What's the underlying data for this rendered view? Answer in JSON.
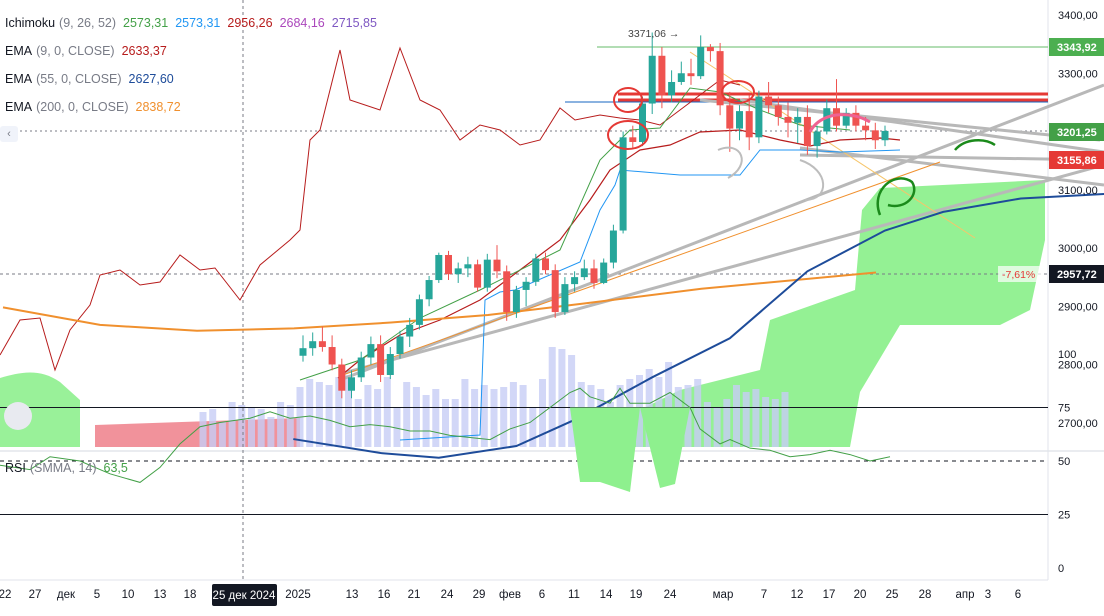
{
  "legend": {
    "ichimoku": {
      "name": "Ichimoku",
      "params": "(9, 26, 52)",
      "values": [
        "2573,31",
        "2573,31",
        "2956,26",
        "2684,16",
        "2715,85"
      ],
      "colors": [
        "#43a047",
        "#2196f3",
        "#b71c1c",
        "#ab47bc",
        "#7e57c2"
      ]
    },
    "ema9": {
      "name": "EMA",
      "params": "(9, 0, CLOSE)",
      "value": "2633,37",
      "color": "#b71c1c"
    },
    "ema55": {
      "name": "EMA",
      "params": "(55, 0, CLOSE)",
      "value": "2627,60",
      "color": "#1e4c9a"
    },
    "ema200": {
      "name": "EMA",
      "params": "(200, 0, CLOSE)",
      "value": "2838,72",
      "color": "#f0902e"
    }
  },
  "rsi": {
    "name": "RSI",
    "params": "(SMMA, 14)",
    "value": "63,5",
    "color": "#43a047"
  },
  "controls": {
    "collapse": "‹"
  },
  "chart_data": {
    "type": "candlestick",
    "price_axis": {
      "ticks": [
        "3400,00",
        "3300,00",
        "3200,00",
        "3100,00",
        "3000,00",
        "2900,00",
        "2800,00",
        "2700,00"
      ],
      "values": [
        3400,
        3300,
        3200,
        3100,
        3000,
        2900,
        2800,
        2700
      ]
    },
    "rsi_axis": {
      "ticks": [
        "100",
        "75",
        "50",
        "25",
        "0"
      ],
      "values": [
        100,
        75,
        50,
        25,
        0
      ]
    },
    "time_axis": [
      "22",
      "27",
      "дек",
      "5",
      "10",
      "13",
      "18",
      "25 дек 2024",
      "2025",
      "13",
      "16",
      "21",
      "24",
      "29",
      "фев",
      "6",
      "11",
      "14",
      "19",
      "24",
      "мар",
      "7",
      "12",
      "17",
      "20",
      "25",
      "28",
      "апр",
      "3",
      "6"
    ],
    "highlight_date": "25 дек 2024",
    "annotations": {
      "high": "3371,06 →",
      "pct": "-7,61%",
      "crosshair_price": "2957,72"
    },
    "price_labels": [
      {
        "text": "3343,92",
        "price": 3343.92,
        "color": "#4caf50"
      },
      {
        "text": "3201,25",
        "price": 3201.25,
        "color": "#43a047"
      },
      {
        "text": "3155,86",
        "price": 3155.86,
        "color": "#e53935"
      },
      {
        "text": "2957,72",
        "price": 2957.72,
        "color": "#131722"
      }
    ],
    "candles": [
      [
        2815,
        2850,
        2805,
        2828
      ],
      [
        2828,
        2855,
        2815,
        2840
      ],
      [
        2840,
        2865,
        2822,
        2830
      ],
      [
        2830,
        2850,
        2790,
        2800
      ],
      [
        2800,
        2810,
        2742,
        2755
      ],
      [
        2755,
        2790,
        2742,
        2778
      ],
      [
        2778,
        2822,
        2770,
        2812
      ],
      [
        2812,
        2848,
        2800,
        2835
      ],
      [
        2835,
        2850,
        2770,
        2782
      ],
      [
        2782,
        2830,
        2775,
        2818
      ],
      [
        2818,
        2858,
        2810,
        2848
      ],
      [
        2848,
        2880,
        2830,
        2868
      ],
      [
        2868,
        2920,
        2860,
        2912
      ],
      [
        2912,
        2952,
        2900,
        2945
      ],
      [
        2945,
        2992,
        2940,
        2988
      ],
      [
        2988,
        2995,
        2945,
        2955
      ],
      [
        2955,
        2975,
        2940,
        2965
      ],
      [
        2965,
        2985,
        2950,
        2972
      ],
      [
        2972,
        2980,
        2925,
        2932
      ],
      [
        2932,
        2990,
        2925,
        2980
      ],
      [
        2980,
        3005,
        2948,
        2960
      ],
      [
        2960,
        2970,
        2875,
        2890
      ],
      [
        2890,
        2935,
        2880,
        2928
      ],
      [
        2928,
        2950,
        2900,
        2942
      ],
      [
        2942,
        2990,
        2935,
        2982
      ],
      [
        2982,
        2992,
        2955,
        2962
      ],
      [
        2962,
        2972,
        2880,
        2890
      ],
      [
        2890,
        2950,
        2885,
        2938
      ],
      [
        2938,
        2960,
        2925,
        2950
      ],
      [
        2950,
        2980,
        2945,
        2965
      ],
      [
        2965,
        2980,
        2930,
        2940
      ],
      [
        2940,
        2982,
        2938,
        2975
      ],
      [
        2975,
        3040,
        2965,
        3030
      ],
      [
        3030,
        3200,
        3025,
        3190
      ],
      [
        3190,
        3210,
        3170,
        3182
      ],
      [
        3182,
        3260,
        3175,
        3248
      ],
      [
        3248,
        3370,
        3230,
        3330
      ],
      [
        3330,
        3345,
        3240,
        3262
      ],
      [
        3262,
        3305,
        3250,
        3285
      ],
      [
        3285,
        3320,
        3280,
        3300
      ],
      [
        3300,
        3325,
        3280,
        3295
      ],
      [
        3295,
        3365,
        3290,
        3345
      ],
      [
        3345,
        3350,
        3320,
        3338
      ],
      [
        3338,
        3352,
        3228,
        3245
      ],
      [
        3245,
        3268,
        3165,
        3205
      ],
      [
        3205,
        3245,
        3185,
        3235
      ],
      [
        3235,
        3262,
        3168,
        3190
      ],
      [
        3190,
        3270,
        3180,
        3260
      ],
      [
        3260,
        3285,
        3232,
        3245
      ],
      [
        3245,
        3260,
        3210,
        3225
      ],
      [
        3225,
        3250,
        3190,
        3215
      ],
      [
        3215,
        3240,
        3180,
        3225
      ],
      [
        3225,
        3245,
        3160,
        3175
      ],
      [
        3175,
        3210,
        3155,
        3200
      ],
      [
        3200,
        3255,
        3195,
        3240
      ],
      [
        3240,
        3290,
        3200,
        3210
      ],
      [
        3210,
        3240,
        3205,
        3232
      ],
      [
        3232,
        3245,
        3200,
        3210
      ],
      [
        3210,
        3225,
        3185,
        3202
      ],
      [
        3202,
        3215,
        3170,
        3185
      ],
      [
        3185,
        3210,
        3175,
        3201
      ]
    ],
    "ema": [
      {
        "name": "EMA 200",
        "color": "#f0902e",
        "points": [
          [
            0,
            2898
          ],
          [
            10,
            2868
          ],
          [
            20,
            2858
          ],
          [
            30,
            2862
          ],
          [
            40,
            2872
          ],
          [
            50,
            2885
          ],
          [
            60,
            2905
          ],
          [
            72,
            2930
          ],
          [
            90,
            2958
          ]
        ]
      },
      {
        "name": "EMA 55",
        "color": "#1e4c9a",
        "points": [
          [
            -1,
            2672
          ],
          [
            8,
            2648
          ],
          [
            14,
            2640
          ],
          [
            22,
            2660
          ],
          [
            28,
            2705
          ],
          [
            36,
            2778
          ],
          [
            44,
            2845
          ],
          [
            52,
            2960
          ],
          [
            60,
            3030
          ],
          [
            66,
            3062
          ],
          [
            74,
            3085
          ],
          [
            85,
            3095
          ],
          [
            90,
            3110
          ]
        ]
      }
    ],
    "rsi_series": [
      [
        0,
        48
      ],
      [
        3,
        46
      ],
      [
        5,
        52
      ],
      [
        8,
        50
      ],
      [
        11,
        44
      ],
      [
        14,
        40
      ],
      [
        16,
        47
      ],
      [
        18,
        58
      ],
      [
        20,
        66
      ],
      [
        22,
        68
      ],
      [
        25,
        70
      ],
      [
        27,
        73
      ],
      [
        29,
        70
      ],
      [
        31,
        71
      ],
      [
        33,
        69
      ],
      [
        35,
        66
      ],
      [
        37,
        67
      ],
      [
        39,
        66
      ],
      [
        41,
        64
      ],
      [
        43,
        64
      ],
      [
        45,
        62
      ],
      [
        47,
        61
      ],
      [
        49,
        60
      ],
      [
        51,
        65
      ],
      [
        53,
        68
      ],
      [
        55,
        75
      ],
      [
        57,
        82
      ],
      [
        58,
        84
      ],
      [
        59,
        80
      ],
      [
        61,
        77
      ],
      [
        62,
        84
      ],
      [
        63,
        77
      ],
      [
        65,
        77
      ],
      [
        67,
        82
      ],
      [
        69,
        75
      ],
      [
        70,
        65
      ],
      [
        72,
        58
      ],
      [
        73,
        60
      ],
      [
        75,
        56
      ],
      [
        77,
        55
      ],
      [
        79,
        52
      ],
      [
        81,
        53
      ],
      [
        83,
        55
      ],
      [
        85,
        53
      ],
      [
        87,
        50
      ],
      [
        88,
        51
      ],
      [
        89,
        52
      ]
    ],
    "volumes": [
      35,
      38,
      25,
      45,
      42,
      40,
      38,
      30,
      45,
      42,
      60,
      68,
      65,
      62,
      70,
      72,
      48,
      62,
      58,
      70,
      40,
      65,
      60,
      52,
      58,
      48,
      48,
      68,
      58,
      62,
      58,
      60,
      65,
      62,
      40,
      68,
      100,
      98,
      92,
      65,
      62,
      58,
      45,
      62,
      68,
      72,
      78,
      70,
      85,
      60,
      62,
      68,
      45,
      40,
      48,
      62,
      55,
      58,
      50,
      48,
      55
    ]
  }
}
